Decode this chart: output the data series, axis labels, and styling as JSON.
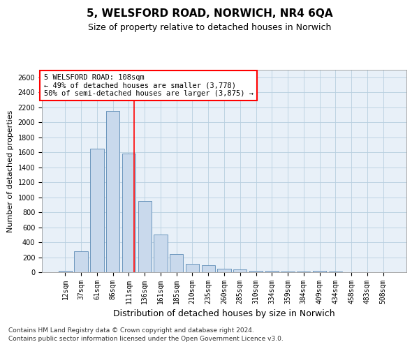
{
  "title1": "5, WELSFORD ROAD, NORWICH, NR4 6QA",
  "title2": "Size of property relative to detached houses in Norwich",
  "xlabel": "Distribution of detached houses by size in Norwich",
  "ylabel": "Number of detached properties",
  "categories": [
    "12sqm",
    "37sqm",
    "61sqm",
    "86sqm",
    "111sqm",
    "136sqm",
    "161sqm",
    "185sqm",
    "210sqm",
    "235sqm",
    "260sqm",
    "285sqm",
    "310sqm",
    "334sqm",
    "359sqm",
    "384sqm",
    "409sqm",
    "434sqm",
    "458sqm",
    "483sqm",
    "508sqm"
  ],
  "values": [
    20,
    280,
    1650,
    2150,
    1580,
    950,
    500,
    240,
    110,
    90,
    50,
    35,
    20,
    15,
    10,
    5,
    15,
    5,
    3,
    3,
    2
  ],
  "bar_color": "#c9d9ec",
  "bar_edge_color": "#5a8ab5",
  "grid_color": "#b8cfe0",
  "bg_color": "#e8f0f8",
  "annotation_text_line1": "5 WELSFORD ROAD: 108sqm",
  "annotation_text_line2": "← 49% of detached houses are smaller (3,778)",
  "annotation_text_line3": "50% of semi-detached houses are larger (3,875) →",
  "vline_pos": 4.35,
  "ylim": [
    0,
    2700
  ],
  "yticks": [
    0,
    200,
    400,
    600,
    800,
    1000,
    1200,
    1400,
    1600,
    1800,
    2000,
    2200,
    2400,
    2600
  ],
  "footer1": "Contains HM Land Registry data © Crown copyright and database right 2024.",
  "footer2": "Contains public sector information licensed under the Open Government Licence v3.0.",
  "title1_fontsize": 11,
  "title2_fontsize": 9,
  "xlabel_fontsize": 9,
  "ylabel_fontsize": 8,
  "tick_fontsize": 7,
  "annotation_fontsize": 7.5,
  "footer_fontsize": 6.5
}
